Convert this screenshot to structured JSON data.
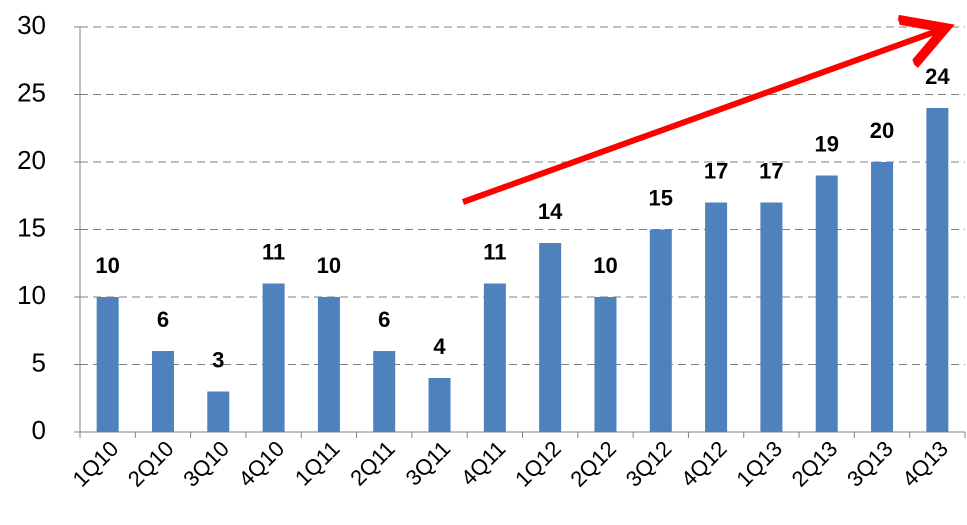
{
  "chart_data": {
    "type": "bar",
    "categories": [
      "1Q10",
      "2Q10",
      "3Q10",
      "4Q10",
      "1Q11",
      "2Q11",
      "3Q11",
      "4Q11",
      "1Q12",
      "2Q12",
      "3Q12",
      "4Q12",
      "1Q13",
      "2Q13",
      "3Q13",
      "4Q13"
    ],
    "values": [
      10,
      6,
      3,
      11,
      10,
      6,
      4,
      11,
      14,
      10,
      15,
      17,
      17,
      19,
      20,
      24
    ],
    "color": "#4f81bd",
    "ylim": [
      0,
      30
    ],
    "yticks": [
      0,
      5,
      10,
      15,
      20,
      25,
      30
    ],
    "grid": true
  }
}
